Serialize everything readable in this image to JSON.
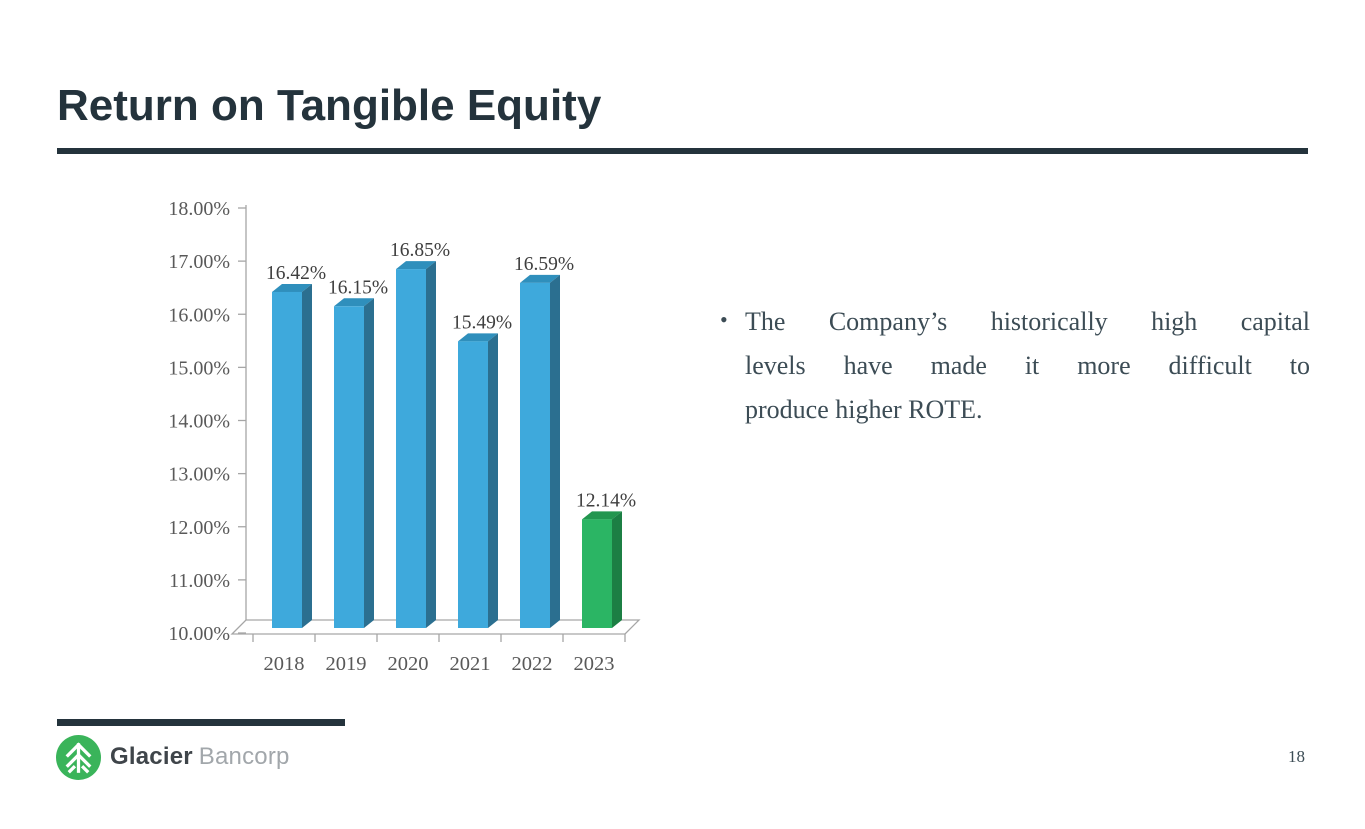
{
  "slide": {
    "title": "Return on Tangible Equity",
    "page_number": "18"
  },
  "footer": {
    "brand_bold": "Glacier",
    "brand_light": "Bancorp"
  },
  "bullet": {
    "marker": "•",
    "lines": [
      "The Company’s historically high capital",
      "levels have made it more difficult to",
      "produce higher ROTE."
    ]
  },
  "chart_data": {
    "type": "bar",
    "style": "3d-column",
    "title": "",
    "xlabel": "",
    "ylabel": "",
    "categories": [
      "2018",
      "2019",
      "2020",
      "2021",
      "2022",
      "2023"
    ],
    "values": [
      16.42,
      16.15,
      16.85,
      15.49,
      16.59,
      12.14
    ],
    "data_labels": [
      "16.42%",
      "16.15%",
      "16.85%",
      "15.49%",
      "16.59%",
      "12.14%"
    ],
    "y_ticks": [
      "18.00%",
      "17.00%",
      "16.00%",
      "15.00%",
      "14.00%",
      "13.00%",
      "12.00%",
      "11.00%",
      "10.00%"
    ],
    "ylim": [
      10,
      18
    ],
    "grid": false,
    "legend": false,
    "highlight_index": 5,
    "bar_colors": {
      "front": "#3EA9DC",
      "side": "#2B6F90",
      "top": "#2F8FBC"
    },
    "highlight_colors": {
      "front": "#2BB564",
      "side": "#1C7F44",
      "top": "#23964F"
    },
    "axis_color": "#A6A6A6",
    "tick_label_color": "#595959",
    "data_label_color": "#3F3F3F"
  },
  "colors": {
    "accent_dark": "#24333C",
    "logo_green": "#3AB45A",
    "brand_bold_text": "#3F454A",
    "brand_light_text": "#A2A7AB",
    "bullet_text": "#3C4C55"
  }
}
